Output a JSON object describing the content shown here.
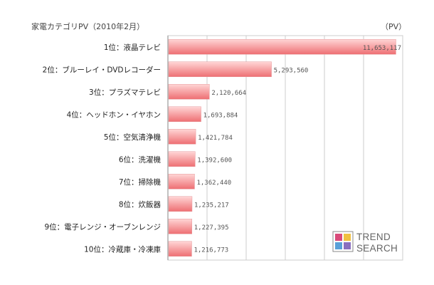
{
  "header": {
    "title": "家電カテゴリPV（2010年2月）",
    "unit": "（PV）"
  },
  "chart_data": {
    "type": "bar",
    "orientation": "horizontal",
    "title": "家電カテゴリPV（2010年2月）",
    "unit": "（PV）",
    "categories": [
      "1位：液晶テレビ",
      "2位：ブルーレイ・DVDレコーダー",
      "3位：プラズマテレビ",
      "4位：ヘッドホン・イヤホン",
      "5位：空気清浄機",
      "6位：洗濯機",
      "7位：掃除機",
      "8位：炊飯器",
      "9位：電子レンジ・オーブンレンジ",
      "10位：冷蔵庫・冷凍庫"
    ],
    "values": [
      11653117,
      5293560,
      2120664,
      1693884,
      1421784,
      1392600,
      1362440,
      1235217,
      1227395,
      1216773
    ],
    "value_labels": [
      "11,653,117",
      "5,293,560",
      "2,120,664",
      "1,693,884",
      "1,421,784",
      "1,392,600",
      "1,362,440",
      "1,235,217",
      "1,227,395",
      "1,216,773"
    ],
    "xlim": [
      0,
      12000000
    ],
    "grid": true,
    "colors": {
      "bar_top": "#ffd6d6",
      "bar_bottom": "#ee6f73",
      "grid": "#cccccc",
      "axis": "#999999"
    }
  },
  "logo": {
    "line1": "TREND",
    "line2": "SEARCH",
    "colors": [
      "#d94a7a",
      "#f0c040",
      "#5aa0d8",
      "#8a6fbf"
    ]
  }
}
